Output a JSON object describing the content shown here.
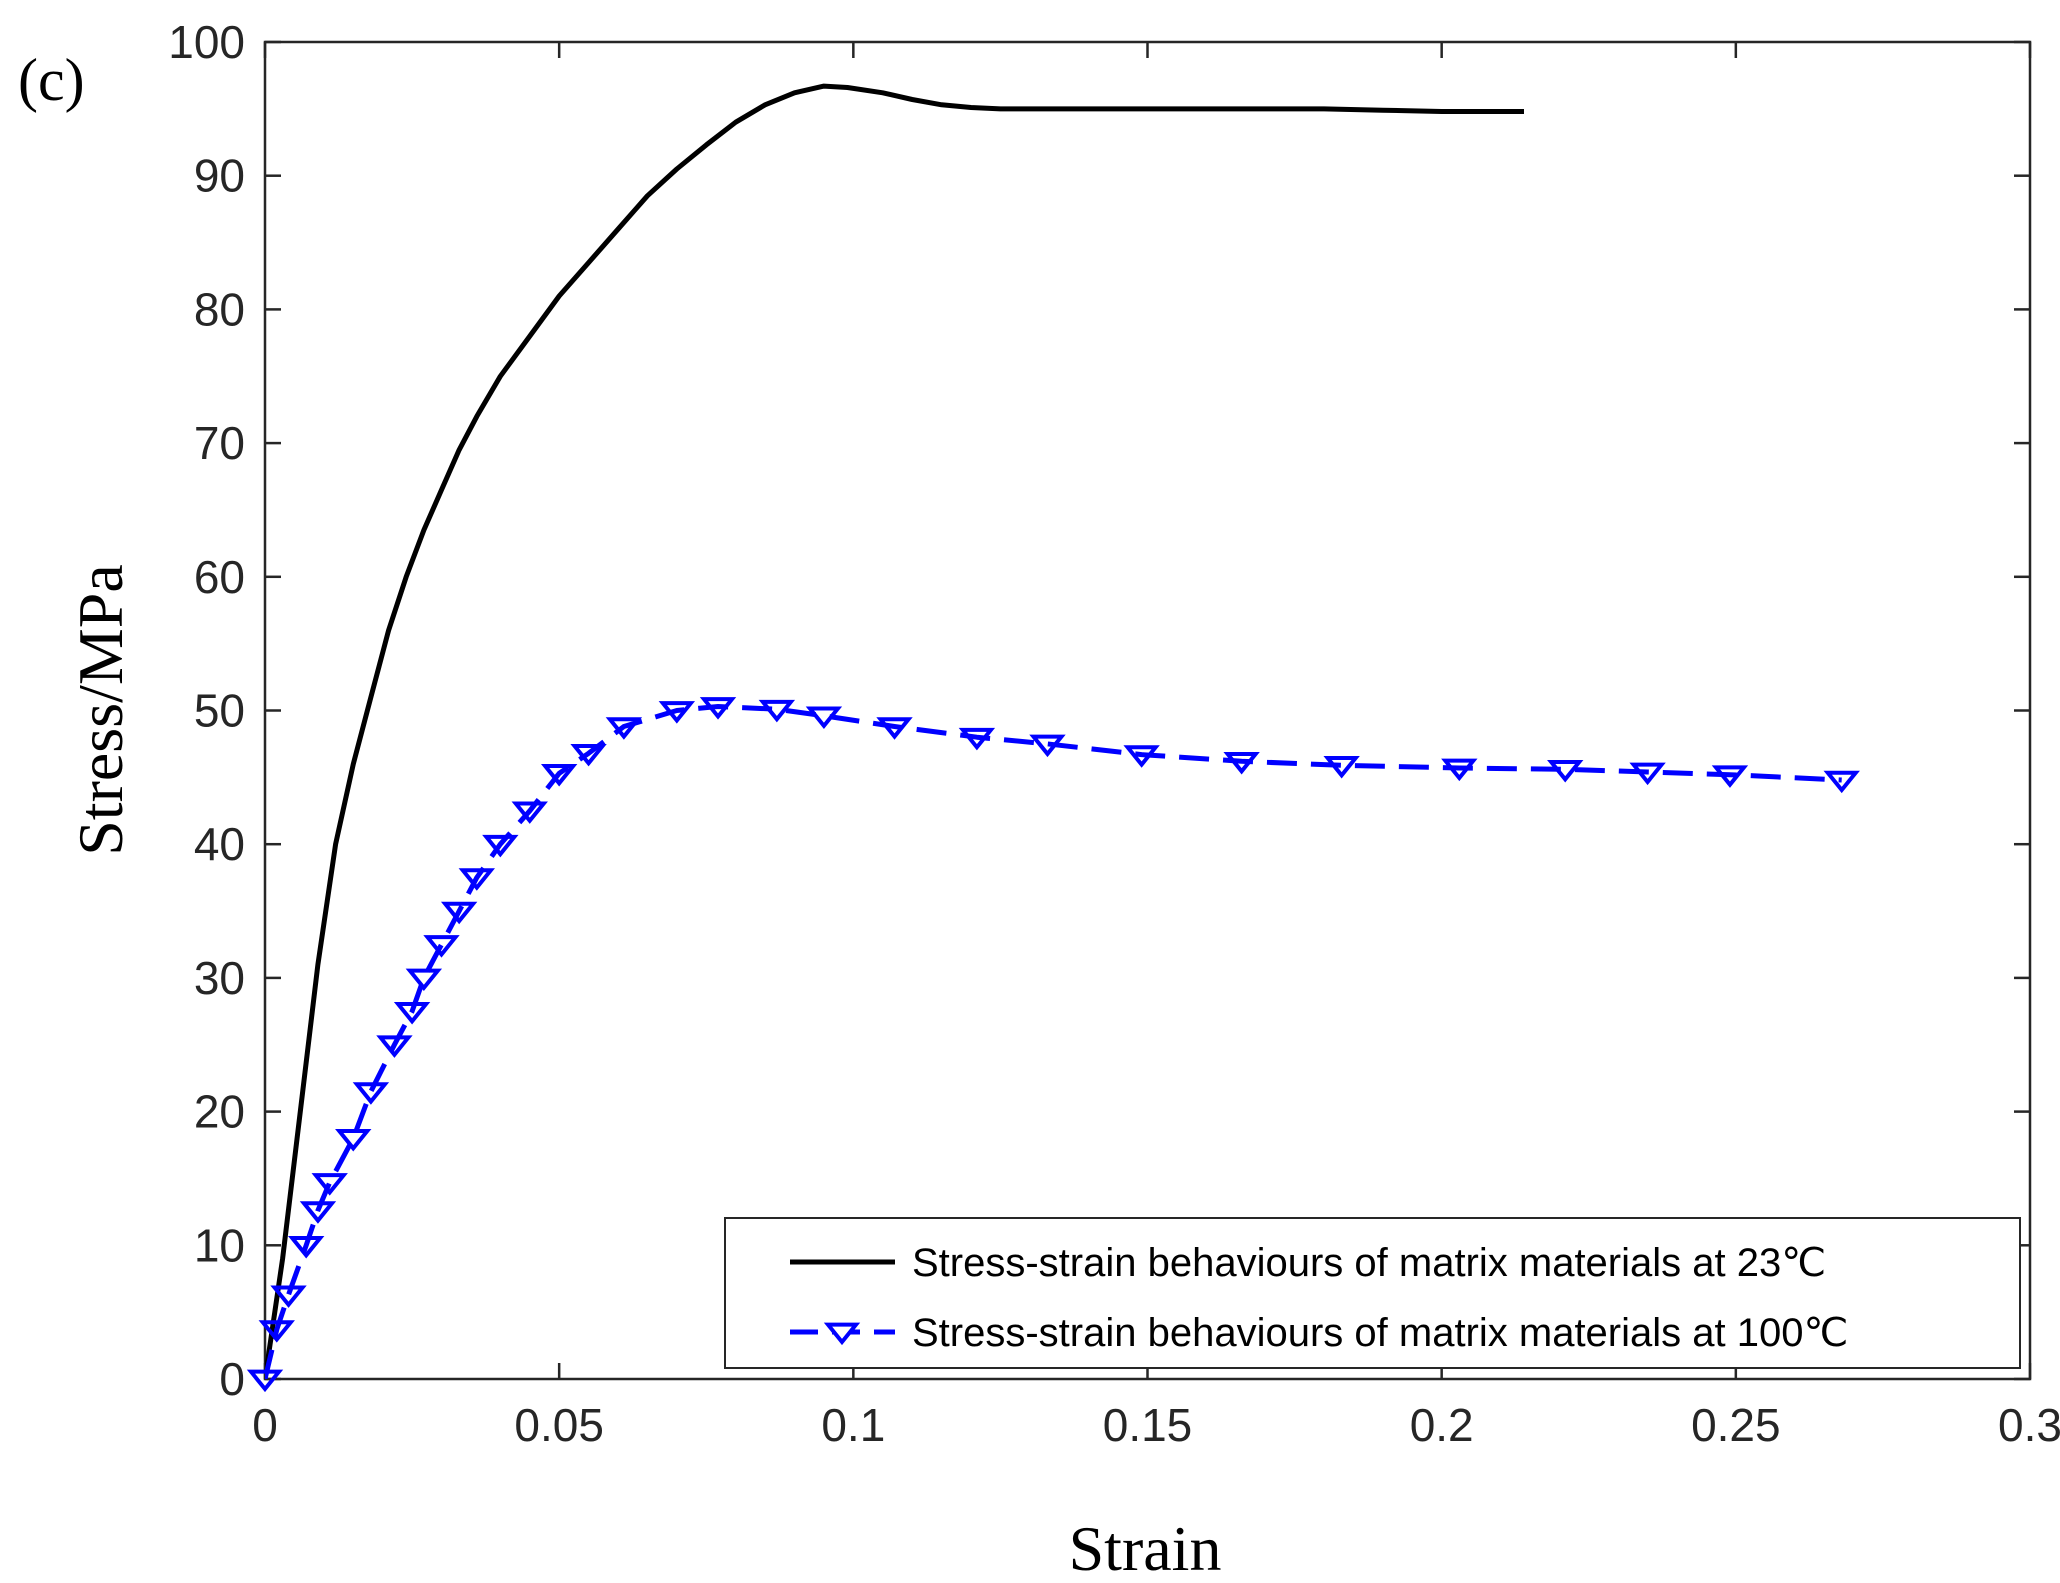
{
  "panel_label": "(c)",
  "chart_data": {
    "type": "line",
    "title": "",
    "xlabel": "Strain",
    "ylabel": "Stress/MPa",
    "xlim": [
      0,
      0.3
    ],
    "ylim": [
      0,
      100
    ],
    "xticks": [
      0,
      0.05,
      0.1,
      0.15,
      0.2,
      0.25,
      0.3
    ],
    "xtick_labels": [
      "0",
      "0.05",
      "0.1",
      "0.15",
      "0.2",
      "0.25",
      "0.3"
    ],
    "yticks": [
      0,
      10,
      20,
      30,
      40,
      50,
      60,
      70,
      80,
      90,
      100
    ],
    "ytick_labels": [
      "0",
      "10",
      "20",
      "30",
      "40",
      "50",
      "60",
      "70",
      "80",
      "90",
      "100"
    ],
    "grid": false,
    "legend_position": "bottom-right",
    "series": [
      {
        "name": "Stress-strain behaviours of matrix materials at 23℃",
        "color": "#000000",
        "line_style": "solid",
        "marker": "none",
        "x": [
          0,
          0.003,
          0.006,
          0.009,
          0.012,
          0.015,
          0.018,
          0.021,
          0.024,
          0.027,
          0.03,
          0.033,
          0.036,
          0.04,
          0.045,
          0.05,
          0.055,
          0.06,
          0.065,
          0.07,
          0.075,
          0.08,
          0.085,
          0.09,
          0.095,
          0.099,
          0.105,
          0.11,
          0.115,
          0.12,
          0.125,
          0.135,
          0.15,
          0.17,
          0.18,
          0.19,
          0.2,
          0.214
        ],
        "y": [
          0,
          9,
          20,
          31,
          40,
          46,
          51,
          56,
          60,
          63.5,
          66.5,
          69.5,
          72,
          75,
          78,
          81,
          83.5,
          86,
          88.5,
          90.5,
          92.3,
          94,
          95.3,
          96.2,
          96.7,
          96.6,
          96.2,
          95.7,
          95.3,
          95.1,
          95,
          95,
          95,
          95,
          95,
          94.9,
          94.8,
          94.8
        ]
      },
      {
        "name": "Stress-strain behaviours of matrix materials at 100℃",
        "color": "#0000ff",
        "line_style": "dashed",
        "marker": "triangle-down",
        "x": [
          0,
          0.002,
          0.004,
          0.007,
          0.009,
          0.011,
          0.015,
          0.018,
          0.022,
          0.025,
          0.027,
          0.03,
          0.033,
          0.036,
          0.04,
          0.045,
          0.05,
          0.055,
          0.061,
          0.07,
          0.077,
          0.087,
          0.095,
          0.107,
          0.121,
          0.133,
          0.149,
          0.166,
          0.183,
          0.203,
          0.221,
          0.235,
          0.249,
          0.268
        ],
        "y": [
          0,
          3.7,
          6.3,
          10,
          12.6,
          14.7,
          18,
          21.5,
          25,
          27.5,
          30,
          32.5,
          35,
          37.5,
          40,
          42.5,
          45.3,
          46.8,
          48.8,
          50,
          50.3,
          50.1,
          49.6,
          48.8,
          48,
          47.5,
          46.7,
          46.2,
          45.9,
          45.7,
          45.6,
          45.4,
          45.2,
          44.8
        ]
      }
    ]
  }
}
